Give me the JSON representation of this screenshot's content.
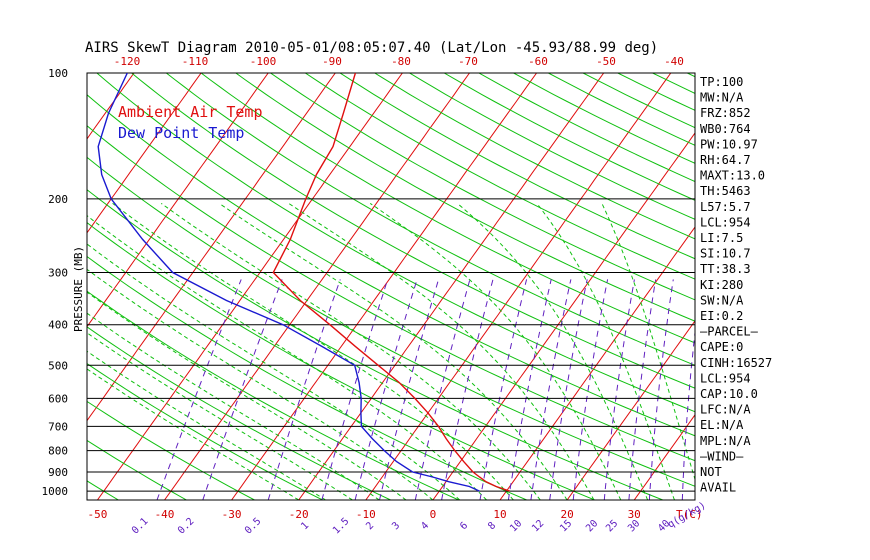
{
  "title": "AIRS SkewT Diagram 2010-05-01/08:05:07.40 (Lat/Lon -45.93/88.99 deg)",
  "ylabel": "PRESSURE (MB)",
  "legend": {
    "ambient": "Ambient Air Temp",
    "dewpoint": "Dew Point Temp"
  },
  "colors": {
    "ambient": "#e01010",
    "dewpoint": "#1a1ad0",
    "isotherm": "#e01010",
    "dry_adiabat": "#10c010",
    "moist_adiabat": "#10c010",
    "mixing_ratio": "#6020c0",
    "axis": "#000000",
    "tick_label": "#d00000",
    "mixing_label": "#6020c0"
  },
  "stats": [
    "TP:100",
    "MW:N/A",
    "FRZ:852",
    "WB0:764",
    "PW:10.97",
    "RH:64.7",
    "MAXT:13.0",
    "TH:5463",
    "L57:5.7",
    "LCL:954",
    "LI:7.5",
    "SI:10.7",
    "TT:38.3",
    "KI:280",
    "SW:N/A",
    "EI:0.2",
    "—PARCEL—",
    "CAPE:0",
    "CINH:16527",
    "LCL:954",
    "CAP:10.0",
    "LFC:N/A",
    "EL:N/A",
    "MPL:N/A",
    "—WIND—",
    "NOT",
    "AVAIL"
  ],
  "tc_label": "T(C)",
  "qg_label": "q(g/kg)",
  "chart_data": {
    "type": "line",
    "title": "AIRS SkewT Diagram 2010-05-01/08:05:07.40 (Lat/Lon -45.93/88.99 deg)",
    "ylabel": "PRESSURE (MB)",
    "xlabel": "T(C)",
    "y_scale": "log",
    "ylim": [
      1050,
      100
    ],
    "pressure_ticks": [
      100,
      200,
      300,
      400,
      500,
      600,
      700,
      800,
      900,
      1000
    ],
    "bottom_temp_ticks": [
      -50,
      -40,
      -30,
      -20,
      -10,
      0,
      10,
      20,
      30,
      40
    ],
    "top_temp_ticks": [
      -120,
      -110,
      -100,
      -90,
      -80,
      -70,
      -60,
      -50,
      -40
    ],
    "mixing_ratio_ticks": [
      "0.1",
      "0.2",
      "0.5",
      "1",
      "1.5",
      "2",
      "3",
      "4",
      "6",
      "8",
      "10",
      "12",
      "15",
      "20",
      "25",
      "30",
      "40"
    ],
    "series": [
      {
        "name": "Ambient Air Temp",
        "points": [
          {
            "p": 1000,
            "t": 10.5
          },
          {
            "p": 975,
            "t": 8.0
          },
          {
            "p": 950,
            "t": 6.0
          },
          {
            "p": 925,
            "t": 4.5
          },
          {
            "p": 900,
            "t": 3.0
          },
          {
            "p": 850,
            "t": 0.5
          },
          {
            "p": 800,
            "t": -2.0
          },
          {
            "p": 750,
            "t": -4.5
          },
          {
            "p": 700,
            "t": -7.0
          },
          {
            "p": 650,
            "t": -10.0
          },
          {
            "p": 600,
            "t": -13.5
          },
          {
            "p": 550,
            "t": -17.5
          },
          {
            "p": 500,
            "t": -22.5
          },
          {
            "p": 450,
            "t": -28.0
          },
          {
            "p": 400,
            "t": -34.0
          },
          {
            "p": 350,
            "t": -41.0
          },
          {
            "p": 300,
            "t": -48.0
          },
          {
            "p": 250,
            "t": -49.0
          },
          {
            "p": 200,
            "t": -51.0
          },
          {
            "p": 175,
            "t": -52.0
          },
          {
            "p": 150,
            "t": -52.5
          },
          {
            "p": 125,
            "t": -54.5
          },
          {
            "p": 100,
            "t": -57.0
          }
        ]
      },
      {
        "name": "Dew Point Temp",
        "points": [
          {
            "p": 1000,
            "t": 6.0
          },
          {
            "p": 975,
            "t": 4.0
          },
          {
            "p": 950,
            "t": 0.5
          },
          {
            "p": 925,
            "t": -2.5
          },
          {
            "p": 900,
            "t": -6.0
          },
          {
            "p": 850,
            "t": -9.5
          },
          {
            "p": 800,
            "t": -12.5
          },
          {
            "p": 750,
            "t": -15.5
          },
          {
            "p": 700,
            "t": -18.5
          },
          {
            "p": 650,
            "t": -20.0
          },
          {
            "p": 600,
            "t": -21.5
          },
          {
            "p": 550,
            "t": -23.5
          },
          {
            "p": 500,
            "t": -26.0
          },
          {
            "p": 450,
            "t": -33.0
          },
          {
            "p": 400,
            "t": -41.0
          },
          {
            "p": 350,
            "t": -52.0
          },
          {
            "p": 300,
            "t": -63.0
          },
          {
            "p": 250,
            "t": -71.0
          },
          {
            "p": 200,
            "t": -80.0
          },
          {
            "p": 175,
            "t": -84.0
          },
          {
            "p": 150,
            "t": -87.5
          },
          {
            "p": 125,
            "t": -89.5
          },
          {
            "p": 100,
            "t": -91.0
          }
        ]
      }
    ]
  }
}
